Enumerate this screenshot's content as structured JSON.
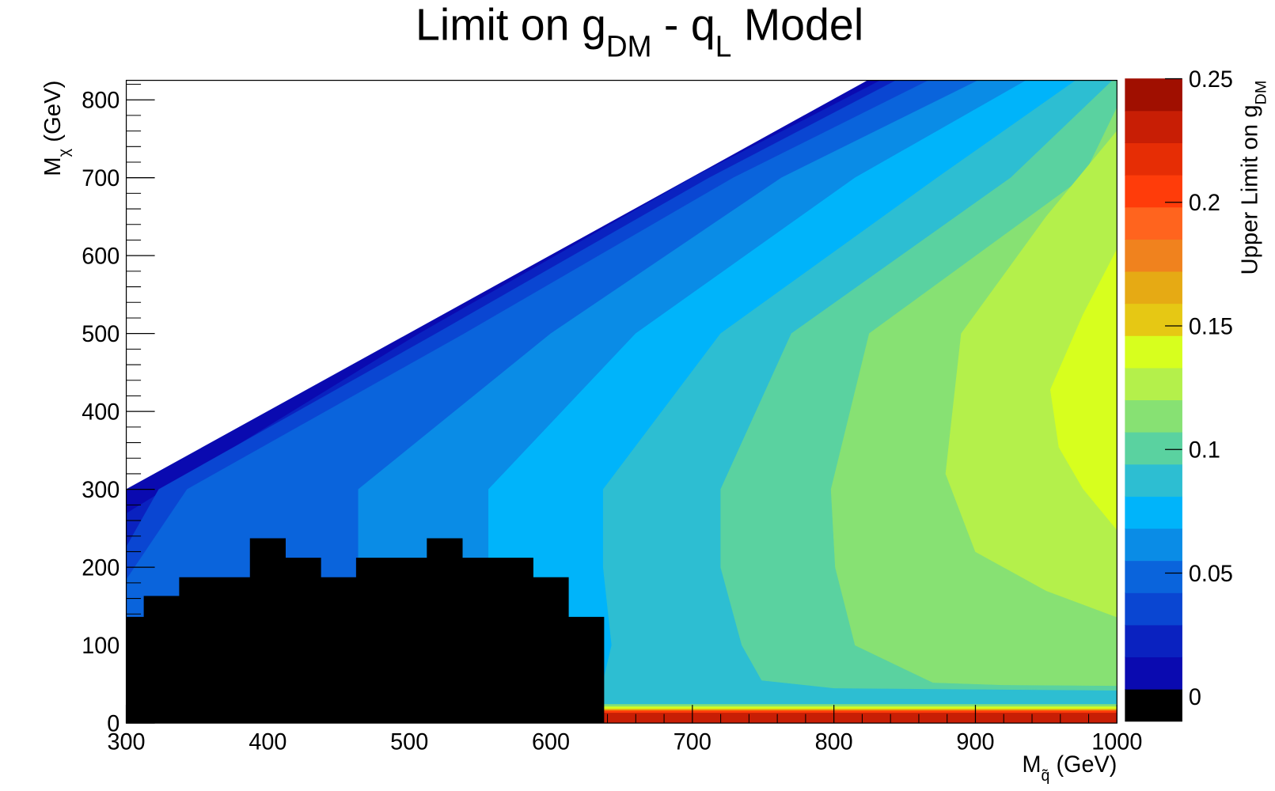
{
  "chart_data": {
    "type": "contour",
    "title": [
      {
        "text": "Limit on g"
      },
      {
        "text": "DM",
        "sub": true
      },
      {
        "text": " - q"
      },
      {
        "text": "L",
        "sub": true
      },
      {
        "text": " Model"
      }
    ],
    "x_label": [
      {
        "text": "M"
      },
      {
        "text": "q̃",
        "sub": true
      },
      {
        "text": " (GeV)"
      }
    ],
    "y_label": [
      {
        "text": "M"
      },
      {
        "text": "χ",
        "sub": true
      },
      {
        "text": " (GeV)"
      }
    ],
    "z_label": [
      {
        "text": "Upper Limit on g"
      },
      {
        "text": "DM",
        "sub": true
      }
    ],
    "xlim": [
      300,
      1000
    ],
    "ylim": [
      0,
      825
    ],
    "xticks": [
      300,
      400,
      500,
      600,
      700,
      800,
      900,
      1000
    ],
    "yticks": [
      0,
      100,
      200,
      300,
      400,
      500,
      600,
      700,
      800
    ],
    "xminorticks": [
      320,
      340,
      360,
      380,
      420,
      440,
      460,
      480,
      520,
      540,
      560,
      580,
      620,
      640,
      660,
      680,
      720,
      740,
      760,
      780,
      820,
      840,
      860,
      880,
      920,
      940,
      960,
      980
    ],
    "yminorticks": [
      20,
      40,
      60,
      80,
      120,
      140,
      160,
      180,
      220,
      240,
      260,
      280,
      320,
      340,
      360,
      380,
      420,
      440,
      460,
      480,
      520,
      540,
      560,
      580,
      620,
      640,
      660,
      680,
      720,
      740,
      760,
      780,
      820
    ],
    "zlim": [
      -0.01,
      0.25
    ],
    "zticks": [
      0,
      0.05,
      0.1,
      0.15,
      0.2,
      0.25
    ],
    "z_levels": [
      -0.01,
      0.003,
      0.016,
      0.029,
      0.042,
      0.055,
      0.068,
      0.081,
      0.094,
      0.107,
      0.12,
      0.133,
      0.146,
      0.159,
      0.172,
      0.185,
      0.198,
      0.211,
      0.224,
      0.237,
      0.25
    ],
    "z_colors": [
      "#000000",
      "#0a0ab0",
      "#0a22c0",
      "#0a46d2",
      "#0a64dc",
      "#0a8ce6",
      "#00b4fa",
      "#2dbed2",
      "#5ad2a0",
      "#87e173",
      "#b4f04b",
      "#d7ff1e",
      "#e6c814",
      "#e6aa14",
      "#f0821e",
      "#ff641e",
      "#ff3c0a",
      "#e62d05",
      "#c81e05",
      "#a00f00"
    ],
    "regions": [
      {
        "z": 0.003,
        "x": [
          300,
          300,
          824,
          1000,
          1000
        ],
        "y": [
          0,
          300,
          825,
          825,
          0
        ]
      },
      {
        "z": 0.016,
        "x": [
          300,
          300,
          507,
          700,
          833,
          1000,
          1000
        ],
        "y": [
          0,
          269,
          500,
          700,
          825,
          825,
          0
        ]
      },
      {
        "z": 0.029,
        "x": [
          300,
          300,
          323,
          519,
          712,
          844,
          1000,
          1000
        ],
        "y": [
          0,
          226,
          300,
          500,
          700,
          825,
          825,
          0
        ]
      },
      {
        "z": 0.042,
        "x": [
          300,
          300,
          343,
          539,
          729,
          867,
          1000,
          1000
        ],
        "y": [
          0,
          184,
          300,
          500,
          700,
          825,
          825,
          0
        ]
      },
      {
        "z": 0.055,
        "x": [
          455,
          464,
          464,
          600,
          763,
          902,
          1000,
          1000
        ],
        "y": [
          0,
          200,
          300,
          500,
          700,
          825,
          825,
          0
        ]
      },
      {
        "z": 0.068,
        "x": [
          550,
          556,
          556,
          660,
          815,
          936,
          1000,
          1000
        ],
        "y": [
          0,
          200,
          300,
          500,
          700,
          825,
          825,
          0
        ]
      },
      {
        "z": 0.081,
        "x": [
          630,
          643,
          637,
          637,
          720,
          873,
          971,
          1000,
          1000
        ],
        "y": [
          0,
          100,
          200,
          300,
          500,
          700,
          825,
          825,
          0
        ]
      },
      {
        "z": 0.094,
        "x": [
          997,
          925,
          770,
          720,
          720,
          735,
          749,
          800,
          1000,
          1000
        ],
        "y": [
          825,
          700,
          500,
          300,
          200,
          100,
          55,
          45,
          42,
          825
        ]
      },
      {
        "z": 0.107,
        "x": [
          1000,
          976,
          825,
          798,
          801,
          815,
          870,
          920,
          1000
        ],
        "y": [
          790,
          700,
          500,
          300,
          200,
          100,
          52,
          49,
          48
        ]
      },
      {
        "z": 0.12,
        "x": [
          1000,
          950,
          890,
          879,
          900,
          950,
          1000
        ],
        "y": [
          760,
          650,
          500,
          320,
          220,
          170,
          136
        ]
      },
      {
        "z": 0.133,
        "x": [
          1000,
          976,
          953,
          959,
          976,
          1000
        ],
        "y": [
          608,
          524,
          428,
          354,
          301,
          248
        ]
      },
      {
        "z": 0.107,
        "x": [
          637.5,
          637.5,
          1000,
          1000
        ],
        "y": [
          0,
          24,
          24,
          0
        ]
      },
      {
        "z": 0.133,
        "x": [
          637.5,
          637.5,
          1000,
          1000
        ],
        "y": [
          0,
          21,
          21,
          0
        ]
      },
      {
        "z": 0.159,
        "x": [
          637.5,
          637.5,
          1000,
          1000
        ],
        "y": [
          0,
          18,
          18,
          0
        ]
      },
      {
        "z": 0.198,
        "x": [
          637.5,
          637.5,
          1000,
          1000
        ],
        "y": [
          0,
          16,
          16,
          0
        ]
      },
      {
        "z": 0.224,
        "x": [
          637.5,
          637.5,
          1000,
          1000
        ],
        "y": [
          0,
          13,
          13,
          0
        ]
      },
      {
        "z": -0.01,
        "x": [
          300,
          300,
          312.5,
          312.5,
          337.5,
          337.5,
          387.5,
          387.5,
          412.5,
          412.5,
          437.5,
          437.5,
          462.5,
          462.5,
          512.5,
          512.5,
          537.5,
          537.5,
          587.5,
          587.5,
          612.5,
          612.5,
          637.5,
          637.5
        ],
        "y": [
          0,
          136,
          136,
          163,
          163,
          187,
          187,
          237,
          237,
          212,
          212,
          187,
          187,
          212,
          212,
          237,
          237,
          212,
          212,
          187,
          187,
          136,
          136,
          0
        ]
      }
    ]
  }
}
